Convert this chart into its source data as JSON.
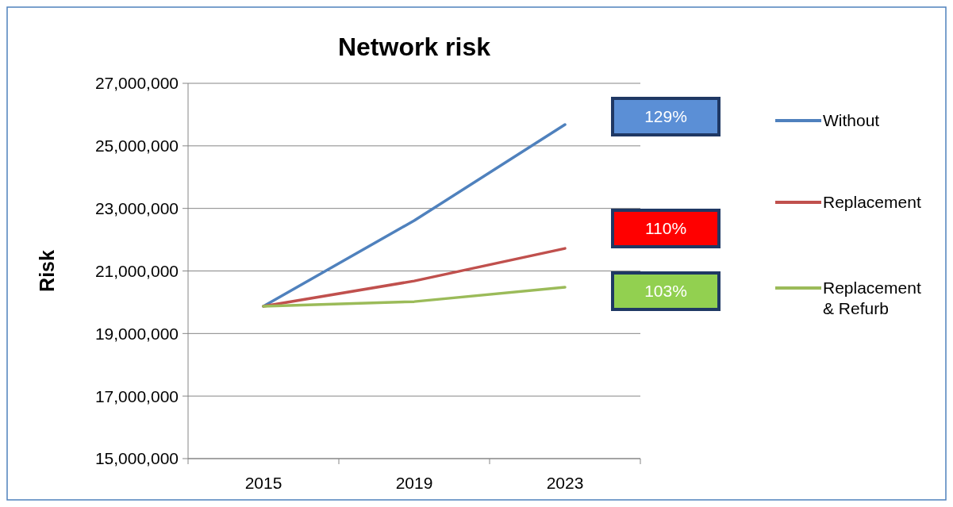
{
  "chart_data": {
    "type": "line",
    "title": "Network risk",
    "ylabel": "Risk",
    "categories": [
      "2015",
      "2019",
      "2023"
    ],
    "series": [
      {
        "name": "Without",
        "color": "#4f81bd",
        "values": [
          19870000,
          22610000,
          25680000
        ]
      },
      {
        "name": "Replacement",
        "color": "#c0504d",
        "values": [
          19870000,
          20680000,
          21720000
        ]
      },
      {
        "name": "Replacement & Refurb",
        "color": "#9bbb59",
        "values": [
          19870000,
          20020000,
          20480000
        ]
      }
    ],
    "ylim": [
      15000000,
      27000000
    ],
    "yticks": [
      {
        "value": 15000000,
        "label": "15,000,000"
      },
      {
        "value": 17000000,
        "label": "17,000,000"
      },
      {
        "value": 19000000,
        "label": "19,000,000"
      },
      {
        "value": 21000000,
        "label": "21,000,000"
      },
      {
        "value": 23000000,
        "label": "23,000,000"
      },
      {
        "value": 25000000,
        "label": "25,000,000"
      },
      {
        "value": 27000000,
        "label": "27,000,000"
      }
    ],
    "grid": "y",
    "legend": "right",
    "marker": "none",
    "line_style": "solid",
    "annotations": [
      "129%",
      "110%",
      "103%"
    ]
  }
}
